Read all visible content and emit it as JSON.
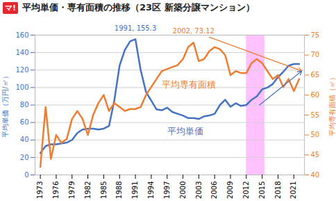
{
  "chart_data": {
    "type": "line",
    "title": "平均単価・専有面積の推移（23区 新築分譲マンション）",
    "logo": "マ!",
    "x": [
      1973,
      1974,
      1975,
      1976,
      1977,
      1978,
      1979,
      1980,
      1981,
      1982,
      1983,
      1984,
      1985,
      1986,
      1987,
      1988,
      1989,
      1990,
      1991,
      1992,
      1993,
      1994,
      1995,
      1996,
      1997,
      1998,
      1999,
      2000,
      2001,
      2002,
      2003,
      2004,
      2005,
      2006,
      2007,
      2008,
      2009,
      2010,
      2011,
      2012,
      2013,
      2014,
      2015,
      2016,
      2017,
      2018,
      2019,
      2020,
      2021,
      2022
    ],
    "xlim": [
      1972,
      2023
    ],
    "xticks": [
      1973,
      1976,
      1979,
      1982,
      1985,
      1988,
      1991,
      1994,
      1997,
      2000,
      2003,
      2006,
      2009,
      2012,
      2015,
      2018,
      2021
    ],
    "ylim": [
      0,
      160
    ],
    "yticks": [
      0,
      20,
      40,
      60,
      80,
      100,
      120,
      140,
      160
    ],
    "y2lim": [
      40,
      75
    ],
    "y2ticks": [
      40,
      45,
      50,
      55,
      60,
      65,
      70,
      75
    ],
    "y_label": "平均単価（万円/㎡）",
    "y2_label": "平均専有面積（㎡）",
    "grid": true,
    "series": [
      {
        "name": "平均単価",
        "color": "#4472c4",
        "axis": "y",
        "label_at": {
          "x": 1997,
          "y": 50
        },
        "values": [
          25,
          33,
          35,
          35,
          36,
          37,
          40,
          48,
          52,
          53,
          53,
          52,
          53,
          56,
          85,
          125,
          143,
          153,
          155.3,
          120,
          95,
          85,
          75,
          74,
          77,
          72,
          70,
          68,
          65,
          65,
          64,
          67,
          68,
          70,
          80,
          86,
          78,
          82,
          79,
          80,
          86,
          90,
          98,
          100,
          104,
          112,
          118,
          125,
          127,
          127
        ]
      },
      {
        "name": "平均専有面積",
        "color": "#ed7d31",
        "axis": "y2",
        "label_at": {
          "x": 1996,
          "y": 62.5
        },
        "values": [
          42,
          57,
          44,
          50,
          48,
          49,
          54,
          56,
          54,
          50,
          55,
          58,
          60,
          56,
          58,
          57,
          56,
          56.5,
          56.5,
          57,
          60,
          62,
          64,
          66,
          66.5,
          67,
          67.5,
          69,
          72,
          73.12,
          68.5,
          69,
          71,
          72,
          71.5,
          70,
          65,
          66,
          65.5,
          65.5,
          68,
          69,
          68,
          66,
          64,
          65,
          62,
          64,
          61,
          64
        ]
      }
    ],
    "annotations": [
      {
        "text": "1991, 155.3",
        "x": 1991,
        "y": 155.3,
        "axis": "y",
        "color": "#4472c4"
      },
      {
        "text": "2002, 73.12",
        "x": 2002,
        "y": 73.12,
        "axis": "y2",
        "color": "#ed7d31"
      }
    ],
    "arrows": [
      {
        "x1": 2005,
        "y1": 74.5,
        "x2": 2022.5,
        "y2": 66,
        "axis": "y2",
        "color": "#ed7d31"
      },
      {
        "x1": 2014.5,
        "y1": 80,
        "x2": 2022.5,
        "y2": 119,
        "axis": "y",
        "color": "#4472c4"
      }
    ],
    "highlight": {
      "x1": 2012,
      "x2": 2015.5,
      "color": "#ff99ff"
    }
  }
}
